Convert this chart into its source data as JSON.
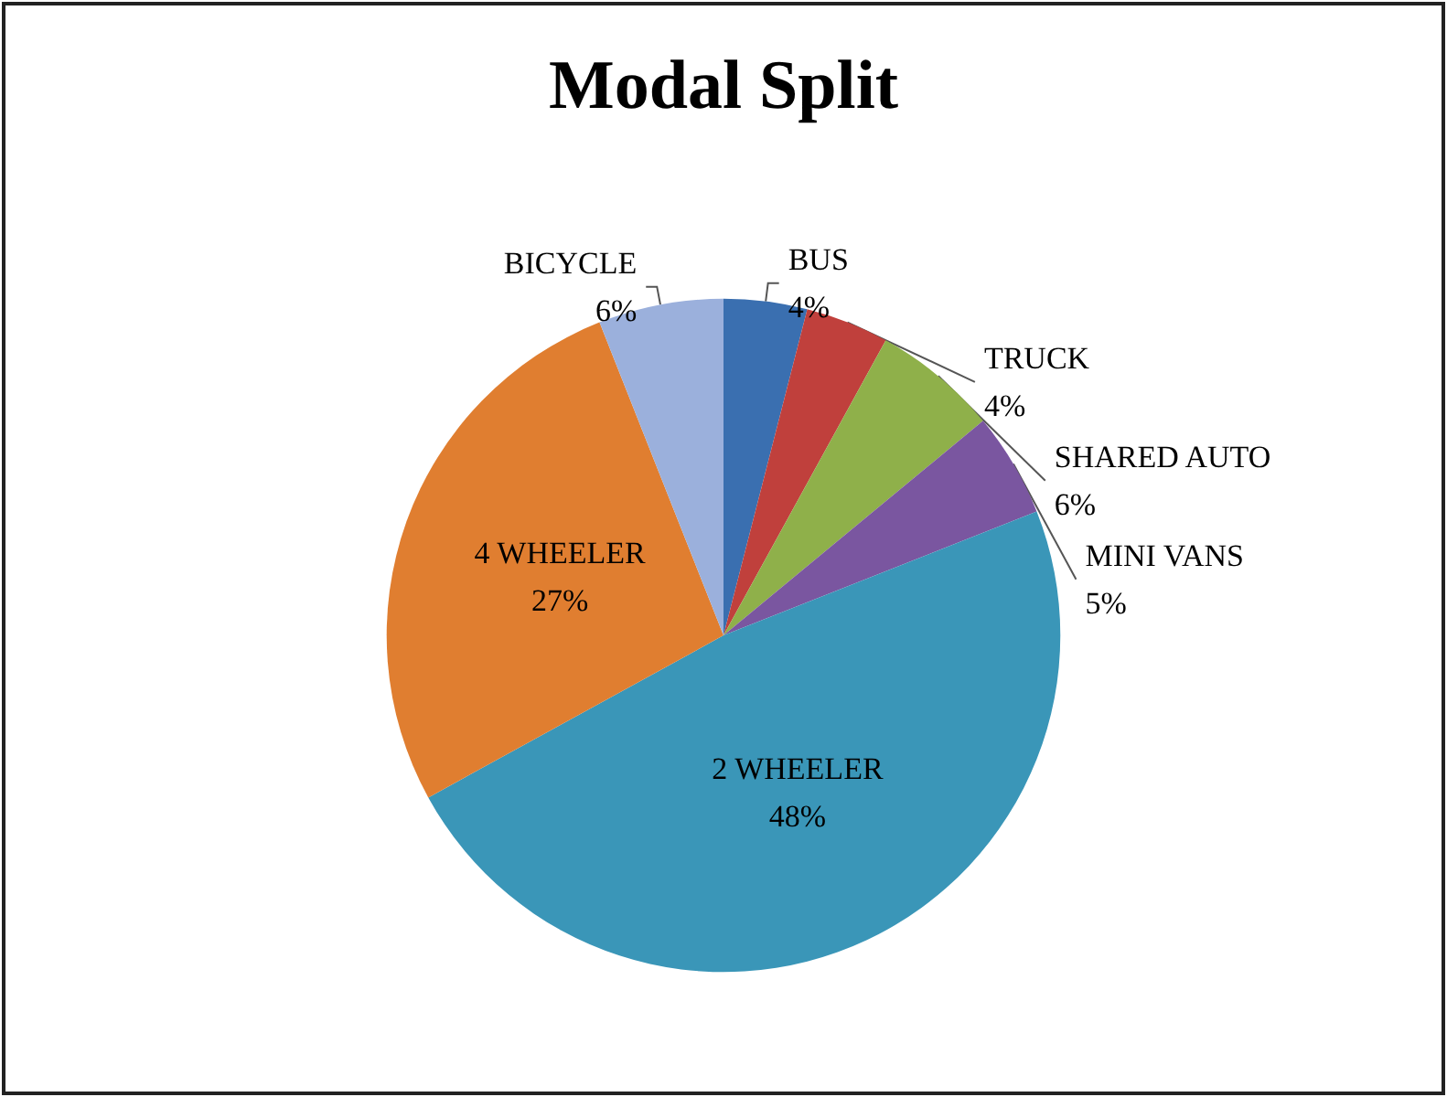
{
  "chart_data": {
    "type": "pie",
    "title": "Modal Split",
    "categories": [
      "BUS",
      "TRUCK",
      "SHARED AUTO",
      "MINI VANS",
      "2 WHEELER",
      "4 WHEELER",
      "BICYCLE"
    ],
    "values": [
      4,
      4,
      6,
      5,
      48,
      27,
      6
    ],
    "value_labels": [
      "4%",
      "4%",
      "6%",
      "5%",
      "48%",
      "27%",
      "6%"
    ],
    "colors": [
      "#3a6fb0",
      "#c0403c",
      "#8fb04a",
      "#7a56a0",
      "#3a96b8",
      "#e07e30",
      "#9bb0dc"
    ],
    "legend": false
  }
}
